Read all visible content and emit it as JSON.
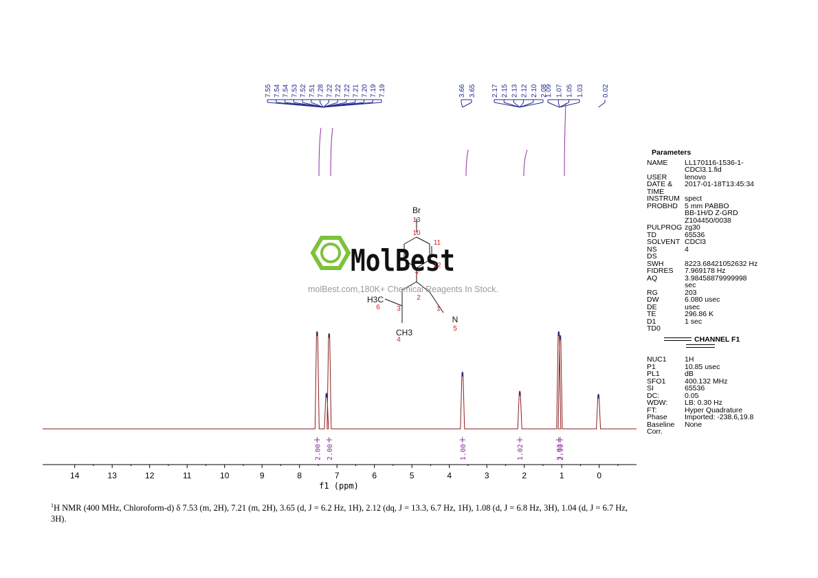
{
  "chart_data": {
    "type": "line",
    "xlabel": "f1 (ppm)",
    "xlim": [
      14.9,
      -0.8
    ],
    "x_ticks": [
      "14",
      "13",
      "12",
      "11",
      "10",
      "9",
      "8",
      "7",
      "6",
      "5",
      "4",
      "3",
      "2",
      "1",
      "0"
    ],
    "peaks": [
      {
        "ppm": 7.53,
        "height": 1.0
      },
      {
        "ppm": 7.21,
        "height": 0.98
      },
      {
        "ppm": 7.28,
        "height": 0.36
      },
      {
        "ppm": 3.65,
        "height": 0.58
      },
      {
        "ppm": 2.12,
        "height": 0.38
      },
      {
        "ppm": 1.08,
        "height": 1.0
      },
      {
        "ppm": 1.04,
        "height": 0.96
      },
      {
        "ppm": 0.02,
        "height": 0.35
      }
    ],
    "peak_labels": [
      {
        "group": "aromatic",
        "values": [
          "7.55",
          "7.54",
          "7.54",
          "7.53",
          "7.52",
          "7.51",
          "7.28",
          "7.22",
          "7.22",
          "7.22",
          "7.21",
          "7.20",
          "7.19",
          "7.19"
        ],
        "center_ppm": 7.37
      },
      {
        "group": "ch",
        "values": [
          "3.66",
          "3.65"
        ],
        "center_ppm": 3.65
      },
      {
        "group": "ch2",
        "values": [
          "2.17",
          "2.15",
          "2.13",
          "2.12",
          "2.10",
          "2.08"
        ],
        "center_ppm": 2.12
      },
      {
        "group": "methyl",
        "values": [
          "1.09",
          "1.07",
          "1.05",
          "1.03"
        ],
        "center_ppm": 1.06
      },
      {
        "group": "tms",
        "values": [
          "0.02"
        ],
        "center_ppm": 0.02
      }
    ],
    "integrals": [
      {
        "ppm": 7.53,
        "value": "2.00"
      },
      {
        "ppm": 7.21,
        "value": "2.00"
      },
      {
        "ppm": 3.65,
        "value": "1.00"
      },
      {
        "ppm": 2.12,
        "value": "1.02"
      },
      {
        "ppm": 1.08,
        "value": "3.03"
      },
      {
        "ppm": 1.04,
        "value": "2.99"
      }
    ]
  },
  "structure": {
    "atoms": [
      "Br",
      "13",
      "10",
      "11",
      "12",
      "7",
      "2",
      "3",
      "6",
      "H3C",
      "1",
      "N",
      "5",
      "CH3",
      "4"
    ]
  },
  "watermark": {
    "brand": "MolBest",
    "tagline": "molBest.com,180K+ Chemical Reagents In Stock."
  },
  "parameters": {
    "title": "Parameters",
    "rows1": [
      {
        "k": "NAME",
        "v": "LL170116-1536-1-\nCDCl3.1.fid"
      },
      {
        "k": "USER",
        "v": "lenovo"
      },
      {
        "k": "DATE &\nTIME",
        "v": "2017-01-18T13:45:34"
      },
      {
        "k": "INSTRUM",
        "v": "spect"
      },
      {
        "k": "PROBHD",
        "v": "5 mm PABBO\nBB-1H/D Z-GRD\nZ104450/0038"
      },
      {
        "k": "PULPROG",
        "v": "zg30"
      },
      {
        "k": "TD",
        "v": "65536"
      },
      {
        "k": "SOLVENT",
        "v": "CDCl3"
      },
      {
        "k": "NS",
        "v": "4"
      },
      {
        "k": "DS",
        "v": ""
      },
      {
        "k": "SWH",
        "v": "8223.68421052632 Hz"
      },
      {
        "k": "FIDRES",
        "v": "7.969178 Hz"
      },
      {
        "k": "AQ",
        "v": "3.98458879999998\nsec"
      },
      {
        "k": "RG",
        "v": "203"
      },
      {
        "k": "DW",
        "v": "6.080 usec"
      },
      {
        "k": "DE",
        "v": "usec"
      },
      {
        "k": "TE",
        "v": "296.86 K"
      },
      {
        "k": "D1",
        "v": "1 sec"
      },
      {
        "k": "TD0",
        "v": ""
      }
    ],
    "channel": "CHANNEL F1",
    "rows2": [
      {
        "k": "NUC1",
        "v": "1H"
      },
      {
        "k": "P1",
        "v": "10.85 usec"
      },
      {
        "k": "PL1",
        "v": "dB"
      },
      {
        "k": "SFO1",
        "v": "400.132 MHz"
      },
      {
        "k": "SI",
        "v": "65536"
      },
      {
        "k": "DC:",
        "v": "0.05"
      },
      {
        "k": "WDW:",
        "v": "LB: 0.30 Hz"
      },
      {
        "k": "FT:",
        "v": "Hyper Quadrature"
      },
      {
        "k": "Phase",
        "v": "Imported: -238.6,19.8"
      },
      {
        "k": "Baseline",
        "v": "None"
      },
      {
        "k": "Corr.",
        "v": ""
      }
    ]
  },
  "caption": {
    "sup": "1",
    "text": "H NMR (400 MHz, Chloroform-d) δ 7.53 (m, 2H), 7.21 (m, 2H), 3.65 (d, J = 6.2 Hz, 1H), 2.12 (dq, J = 13.3, 6.7 Hz, 1H), 1.08 (d, J = 6.8 Hz, 3H), 1.04 (d, J = 6.7 Hz, 3H)."
  },
  "colors": {
    "spectrum": "#8b1a1a",
    "peak_label": "#1f2a8a",
    "integral": "#8b2f9e",
    "atom_number": "#cc2222",
    "logo_green": "#7dc23a"
  }
}
